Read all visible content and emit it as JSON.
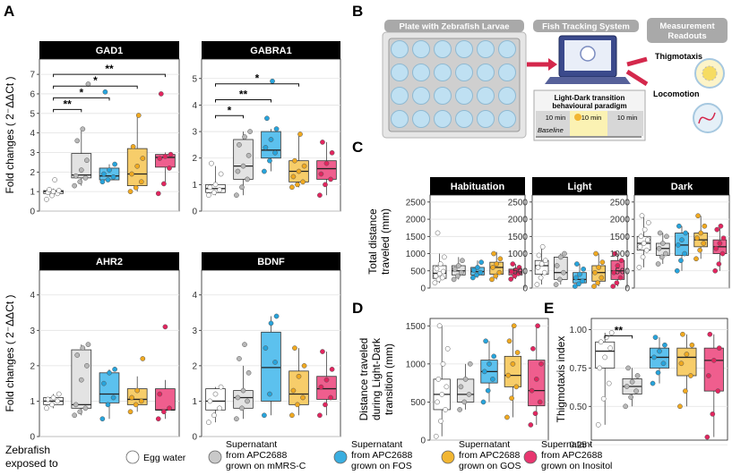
{
  "figure": {
    "panel_letters": [
      "A",
      "B",
      "C",
      "D",
      "E"
    ],
    "legend": {
      "title_line1": "Zebrafish",
      "title_line2": "exposed to",
      "items": [
        {
          "line1": "Egg water",
          "line2": "",
          "line3": "",
          "color": "#ffffff"
        },
        {
          "line1": "Supernatant",
          "line2": "from APC2688",
          "line3": "grown on mMRS-C",
          "color": "#c9c9c9"
        },
        {
          "line1": "Supernatant",
          "line2": "from APC2688",
          "line3": "grown on FOS",
          "color": "#3aaee0"
        },
        {
          "line1": "Supernatant",
          "line2": "from APC2688",
          "line3": "grown on GOS",
          "color": "#f2b632"
        },
        {
          "line1": "Supernatant",
          "line2": "from APC2688",
          "line3": "grown on Inositol",
          "color": "#e8366f"
        }
      ]
    },
    "box_colors": {
      "fill": [
        "#ffffff",
        "#e3e3e3",
        "#5cc1ee",
        "#f7cd6a",
        "#ef5e8e"
      ],
      "point": [
        "#ffffff",
        "#b8b8b8",
        "#27a4dc",
        "#f0a920",
        "#e2255f"
      ]
    },
    "diagram": {
      "plate_title": "Plate with Zebrafish Larvae",
      "tracking_title": "Fish Tracking System",
      "readouts_title_line1": "Measurement",
      "readouts_title_line2": "Readouts",
      "thigmotaxis": "Thigmotaxis",
      "locomotion": "Locomotion",
      "paradigm_line1": "Light-Dark transition",
      "paradigm_line2": "behavioural paradigm",
      "phase1": "10 min",
      "phase2": "10 min",
      "phase3": "10 min",
      "baseline": "Baseline"
    }
  },
  "chart_data": [
    {
      "panel": "A",
      "title": "GAD1",
      "type": "boxplot",
      "ylabel": "Fold changes ( 2⁻ΔΔCt )",
      "ylim": [
        0,
        7.6
      ],
      "yticks": [
        0,
        1,
        2,
        3,
        4,
        5,
        6,
        7
      ],
      "groups": [
        "Egg water",
        "mMRS-C",
        "FOS",
        "GOS",
        "Inositol"
      ],
      "boxes": [
        [
          0.8,
          0.9,
          1.0,
          1.05,
          1.15
        ],
        [
          1.3,
          1.7,
          1.85,
          2.95,
          4.2
        ],
        [
          1.5,
          1.6,
          1.8,
          2.2,
          2.4
        ],
        [
          1.0,
          1.3,
          1.9,
          3.2,
          4.8
        ],
        [
          1.4,
          2.25,
          2.75,
          2.9,
          3.0
        ]
      ],
      "points": [
        [
          0.6,
          0.8,
          0.9,
          0.95,
          1.0,
          1.05,
          1.1,
          1.6
        ],
        [
          1.3,
          1.5,
          1.7,
          1.8,
          2.1,
          2.6,
          3.6,
          4.2,
          6.5
        ],
        [
          1.5,
          1.6,
          1.75,
          1.9,
          2.1,
          2.4,
          6.1
        ],
        [
          1.0,
          1.2,
          1.5,
          1.9,
          2.3,
          2.7,
          3.3,
          4.9
        ],
        [
          0.9,
          1.4,
          2.2,
          2.7,
          2.8,
          2.9,
          6.0
        ]
      ],
      "significance": [
        {
          "from": 0,
          "to": 1,
          "label": "**",
          "y": 5.2
        },
        {
          "from": 0,
          "to": 2,
          "label": "*",
          "y": 5.8
        },
        {
          "from": 0,
          "to": 3,
          "label": "*",
          "y": 6.4
        },
        {
          "from": 0,
          "to": 4,
          "label": "**",
          "y": 7.0
        }
      ]
    },
    {
      "panel": "A",
      "title": "GABRA1",
      "type": "boxplot",
      "ylabel": "",
      "ylim": [
        0,
        5.6
      ],
      "yticks": [
        0,
        1,
        2,
        3,
        4,
        5
      ],
      "groups": [
        "Egg water",
        "mMRS-C",
        "FOS",
        "GOS",
        "Inositol"
      ],
      "boxes": [
        [
          0.6,
          0.7,
          0.85,
          1.0,
          1.7
        ],
        [
          0.6,
          1.2,
          1.7,
          2.7,
          3.0
        ],
        [
          1.5,
          2.0,
          2.3,
          3.0,
          3.1
        ],
        [
          0.9,
          1.1,
          1.5,
          1.9,
          2.9
        ],
        [
          0.6,
          1.2,
          1.6,
          1.9,
          2.6
        ]
      ],
      "points": [
        [
          0.6,
          0.7,
          0.8,
          0.9,
          1.0,
          1.4,
          1.8
        ],
        [
          0.6,
          0.9,
          1.2,
          1.5,
          1.7,
          2.1,
          2.5,
          2.8,
          3.0
        ],
        [
          1.5,
          1.9,
          2.2,
          2.4,
          2.7,
          3.1,
          3.5,
          4.9
        ],
        [
          0.9,
          1.0,
          1.1,
          1.3,
          1.5,
          1.7,
          1.9,
          2.9
        ],
        [
          0.6,
          1.0,
          1.2,
          1.4,
          1.8,
          2.2,
          2.6
        ]
      ],
      "significance": [
        {
          "from": 0,
          "to": 1,
          "label": "*",
          "y": 3.6
        },
        {
          "from": 0,
          "to": 2,
          "label": "**",
          "y": 4.2
        },
        {
          "from": 0,
          "to": 3,
          "label": "*",
          "y": 4.8
        }
      ]
    },
    {
      "panel": "A",
      "title": "AHR2",
      "type": "boxplot",
      "ylabel": "Fold changes ( 2⁻ΔΔCt )",
      "ylim": [
        0,
        4.6
      ],
      "yticks": [
        0,
        1,
        2,
        3,
        4
      ],
      "groups": [
        "Egg water",
        "mMRS-C",
        "FOS",
        "GOS",
        "Inositol"
      ],
      "boxes": [
        [
          0.8,
          0.9,
          1.0,
          1.1,
          1.2
        ],
        [
          0.6,
          0.8,
          0.9,
          2.45,
          2.6
        ],
        [
          0.5,
          0.95,
          1.2,
          1.8,
          1.9
        ],
        [
          0.7,
          0.9,
          1.05,
          1.35,
          1.7
        ],
        [
          0.5,
          0.75,
          0.75,
          1.35,
          1.6
        ]
      ],
      "points": [
        [
          0.8,
          0.9,
          1.0,
          1.05,
          1.1,
          1.2
        ],
        [
          0.6,
          0.7,
          0.8,
          0.9,
          1.6,
          2.0,
          2.3,
          2.5,
          2.6
        ],
        [
          0.5,
          0.9,
          1.1,
          1.5,
          1.8,
          1.9
        ],
        [
          0.7,
          0.9,
          1.0,
          1.1,
          1.3,
          2.2
        ],
        [
          0.5,
          0.7,
          0.8,
          1.2,
          3.1
        ]
      ],
      "significance": []
    },
    {
      "panel": "A",
      "title": "BDNF",
      "type": "boxplot",
      "ylabel": "",
      "ylim": [
        0,
        4.6
      ],
      "yticks": [
        0,
        1,
        2,
        3,
        4
      ],
      "groups": [
        "Egg water",
        "mMRS-C",
        "FOS",
        "GOS",
        "Inositol"
      ],
      "boxes": [
        [
          0.4,
          0.75,
          1.0,
          1.35,
          1.4
        ],
        [
          0.5,
          0.8,
          1.1,
          1.3,
          2.0
        ],
        [
          0.6,
          1.0,
          1.95,
          2.95,
          3.4
        ],
        [
          0.6,
          0.9,
          1.2,
          1.85,
          2.5
        ],
        [
          0.6,
          1.05,
          1.35,
          1.7,
          2.4
        ]
      ],
      "points": [
        [
          0.4,
          0.6,
          0.8,
          1.0,
          1.2,
          1.4
        ],
        [
          0.5,
          0.8,
          1.0,
          1.1,
          1.3,
          1.8,
          2.2,
          2.6
        ],
        [
          0.6,
          1.2,
          2.1,
          2.5,
          3.2,
          3.4
        ],
        [
          0.6,
          0.9,
          1.1,
          1.3,
          1.7,
          2.0,
          2.5
        ],
        [
          0.6,
          0.9,
          1.1,
          1.4,
          1.6,
          1.9,
          2.4
        ]
      ],
      "significance": []
    },
    {
      "panel": "C",
      "title": "Habituation",
      "type": "boxplot",
      "ylabel": "Total distance traveled (mm)",
      "ylim": [
        0,
        2600
      ],
      "yticks": [
        0,
        500,
        1000,
        1500,
        2000,
        2500
      ],
      "groups": [
        "Egg water",
        "mMRS-C",
        "FOS",
        "GOS",
        "Inositol"
      ],
      "boxes": [
        [
          150,
          280,
          430,
          650,
          1000
        ],
        [
          250,
          380,
          500,
          650,
          900
        ],
        [
          300,
          380,
          480,
          600,
          800
        ],
        [
          250,
          400,
          600,
          750,
          1050
        ],
        [
          260,
          380,
          470,
          550,
          700
        ]
      ],
      "points": [
        [
          150,
          250,
          300,
          350,
          420,
          480,
          560,
          700,
          900,
          1600
        ],
        [
          250,
          350,
          450,
          550,
          650,
          800
        ],
        [
          300,
          380,
          450,
          520,
          600,
          750
        ],
        [
          250,
          350,
          450,
          600,
          700,
          850,
          1000
        ],
        [
          260,
          350,
          420,
          480,
          520,
          600,
          700
        ]
      ],
      "significance": []
    },
    {
      "panel": "C",
      "title": "Light",
      "type": "boxplot",
      "ylabel": "",
      "ylim": [
        0,
        2600
      ],
      "yticks": [
        0,
        500,
        1000,
        1500,
        2000,
        2500
      ],
      "groups": [
        "Egg water",
        "mMRS-C",
        "FOS",
        "GOS",
        "Inositol"
      ],
      "boxes": [
        [
          100,
          400,
          650,
          800,
          1200
        ],
        [
          100,
          250,
          450,
          900,
          1000
        ],
        [
          50,
          150,
          250,
          450,
          700
        ],
        [
          50,
          200,
          450,
          650,
          1000
        ],
        [
          50,
          250,
          500,
          800,
          1000
        ]
      ],
      "points": [
        [
          100,
          300,
          450,
          600,
          700,
          800,
          950,
          1200
        ],
        [
          100,
          250,
          450,
          650,
          900,
          1000
        ],
        [
          50,
          120,
          200,
          300,
          400,
          550,
          700
        ],
        [
          50,
          150,
          300,
          450,
          600,
          750,
          1000
        ],
        [
          50,
          150,
          300,
          450,
          650,
          800,
          1000
        ]
      ],
      "significance": []
    },
    {
      "panel": "C",
      "title": "Dark",
      "type": "boxplot",
      "ylabel": "",
      "ylim": [
        0,
        2600
      ],
      "yticks": [
        0,
        500,
        1000,
        1500,
        2000,
        2500
      ],
      "groups": [
        "Egg water",
        "mMRS-C",
        "FOS",
        "GOS",
        "Inositol"
      ],
      "boxes": [
        [
          600,
          1100,
          1300,
          1500,
          2100
        ],
        [
          700,
          950,
          1150,
          1300,
          1600
        ],
        [
          500,
          950,
          1250,
          1600,
          1800
        ],
        [
          850,
          1200,
          1400,
          1600,
          2100
        ],
        [
          500,
          1000,
          1200,
          1400,
          1800
        ]
      ],
      "points": [
        [
          600,
          900,
          1100,
          1200,
          1300,
          1400,
          1500,
          1700,
          1900,
          2100
        ],
        [
          700,
          900,
          1000,
          1150,
          1300,
          1500,
          1600
        ],
        [
          500,
          800,
          1000,
          1250,
          1400,
          1600,
          1800
        ],
        [
          850,
          1100,
          1300,
          1450,
          1600,
          1800,
          2100
        ],
        [
          500,
          700,
          1000,
          1150,
          1300,
          1450,
          1700,
          1800
        ]
      ],
      "significance": []
    },
    {
      "panel": "D",
      "title": "",
      "type": "boxplot",
      "ylabel": "Distance traveled during Light-Dark transition (mm)",
      "ylim": [
        0,
        1550
      ],
      "yticks": [
        0,
        500,
        1000,
        1500
      ],
      "groups": [
        "Egg water",
        "mMRS-C",
        "FOS",
        "GOS",
        "Inositol"
      ],
      "boxes": [
        [
          50,
          400,
          600,
          800,
          1500
        ],
        [
          400,
          500,
          600,
          800,
          1000
        ],
        [
          500,
          750,
          900,
          1050,
          1300
        ],
        [
          300,
          700,
          850,
          1100,
          1500
        ],
        [
          200,
          450,
          650,
          1050,
          1500
        ]
      ],
      "points": [
        [
          50,
          250,
          400,
          500,
          600,
          700,
          800,
          1000,
          1200,
          1500
        ],
        [
          400,
          500,
          600,
          700,
          800,
          1000
        ],
        [
          500,
          650,
          800,
          900,
          1000,
          1100,
          1300
        ],
        [
          300,
          550,
          700,
          850,
          1000,
          1150,
          1300,
          1500
        ],
        [
          200,
          350,
          500,
          650,
          800,
          1000,
          1200,
          1500
        ]
      ],
      "significance": []
    },
    {
      "panel": "E",
      "title": "",
      "type": "boxplot",
      "ylabel": "Thigmotaxis index",
      "ylim": [
        0.28,
        1.05
      ],
      "yticks": [
        0.25,
        0.5,
        0.75,
        1.0
      ],
      "ytick_labels": [
        "0.25",
        "0.50",
        "0.75",
        "1.00"
      ],
      "groups": [
        "Egg water",
        "mMRS-C",
        "FOS",
        "GOS",
        "Inositol"
      ],
      "boxes": [
        [
          0.38,
          0.75,
          0.86,
          0.92,
          0.98
        ],
        [
          0.5,
          0.58,
          0.63,
          0.68,
          0.75
        ],
        [
          0.65,
          0.75,
          0.82,
          0.88,
          0.95
        ],
        [
          0.5,
          0.7,
          0.82,
          0.88,
          0.97
        ],
        [
          0.3,
          0.6,
          0.8,
          0.88,
          0.97
        ]
      ],
      "points": [
        [
          0.38,
          0.55,
          0.65,
          0.75,
          0.82,
          0.88,
          0.92,
          0.95,
          0.98
        ],
        [
          0.5,
          0.56,
          0.6,
          0.63,
          0.66,
          0.7,
          0.75
        ],
        [
          0.65,
          0.72,
          0.78,
          0.82,
          0.86,
          0.9,
          0.95
        ],
        [
          0.5,
          0.6,
          0.7,
          0.78,
          0.84,
          0.9,
          0.97
        ],
        [
          0.3,
          0.45,
          0.6,
          0.7,
          0.8,
          0.88,
          0.97
        ]
      ],
      "significance": [
        {
          "from": 0,
          "to": 1,
          "label": "**",
          "y": 0.96
        }
      ]
    }
  ]
}
